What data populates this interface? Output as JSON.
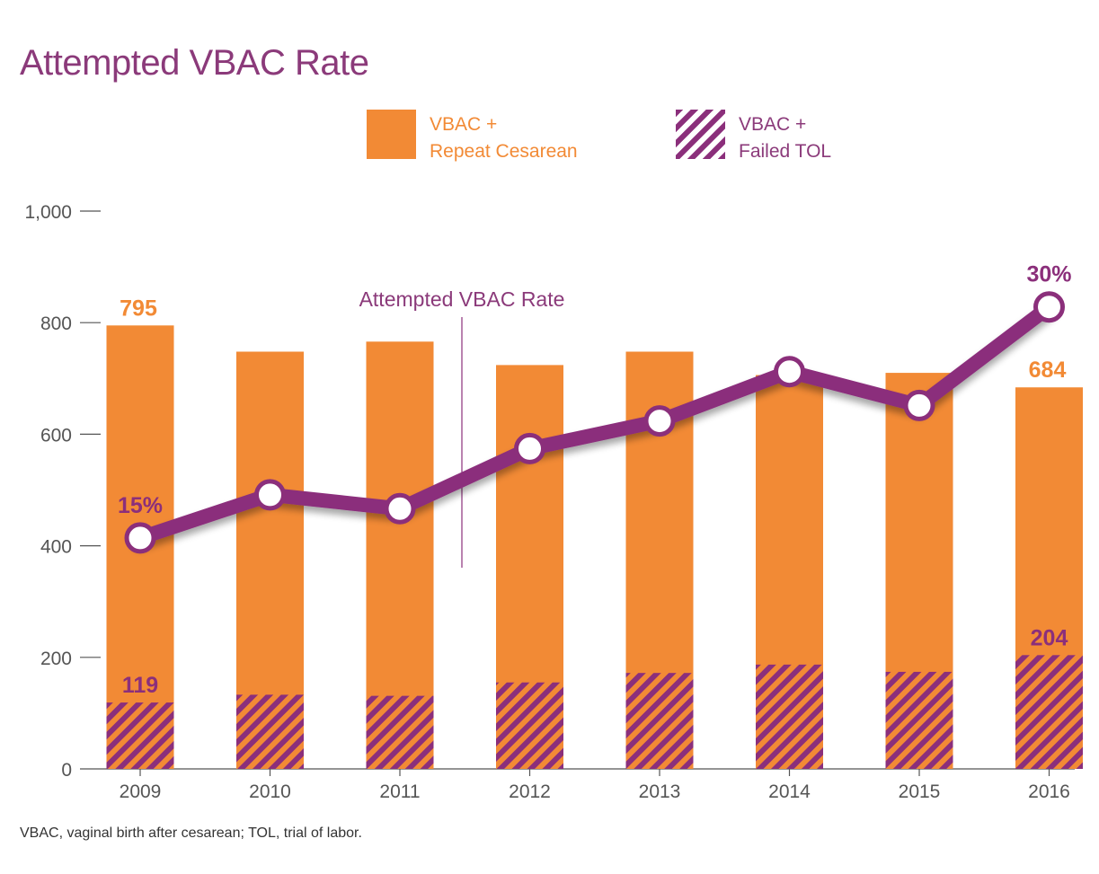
{
  "title": "Attempted VBAC Rate",
  "legend": {
    "orange_line1": "VBAC +",
    "orange_line2": "Repeat Cesarean",
    "hatch_line1": "VBAC +",
    "hatch_line2": "Failed TOL"
  },
  "footnote": "VBAC, vaginal birth after cesarean; TOL, trial of labor.",
  "colors": {
    "orange": "#F28A35",
    "purple": "#8B2F7B",
    "text_purple": "#8B3A7A",
    "axis_text": "#555555"
  },
  "chart_data": {
    "type": "bar",
    "categories": [
      "2009",
      "2010",
      "2011",
      "2012",
      "2013",
      "2014",
      "2015",
      "2016"
    ],
    "series": [
      {
        "name": "VBAC + Repeat Cesarean",
        "values": [
          795,
          748,
          766,
          724,
          748,
          706,
          710,
          684
        ]
      },
      {
        "name": "VBAC + Failed TOL",
        "values": [
          119,
          133,
          131,
          155,
          172,
          187,
          174,
          204
        ]
      }
    ],
    "rate_line": {
      "name": "Attempted VBAC Rate",
      "values": [
        15,
        17.8,
        16.9,
        20.8,
        22.6,
        25.8,
        23.6,
        30
      ],
      "unit": "%"
    },
    "ylim": [
      0,
      1000
    ],
    "yticks": [
      0,
      200,
      400,
      600,
      800,
      1000
    ],
    "ytick_labels": [
      "0",
      "200",
      "400",
      "600",
      "800",
      "1,000"
    ],
    "bar_value_labels": [
      {
        "category": "2009",
        "text": "795"
      },
      {
        "category": "2016",
        "text": "684"
      }
    ],
    "hatch_value_labels": [
      {
        "category": "2009",
        "text": "119"
      },
      {
        "category": "2016",
        "text": "204"
      }
    ],
    "rate_labels": [
      {
        "category": "2009",
        "text": "15%"
      },
      {
        "category": "2016",
        "text": "30%"
      }
    ],
    "annotation": "Attempted VBAC Rate",
    "grid": false
  }
}
